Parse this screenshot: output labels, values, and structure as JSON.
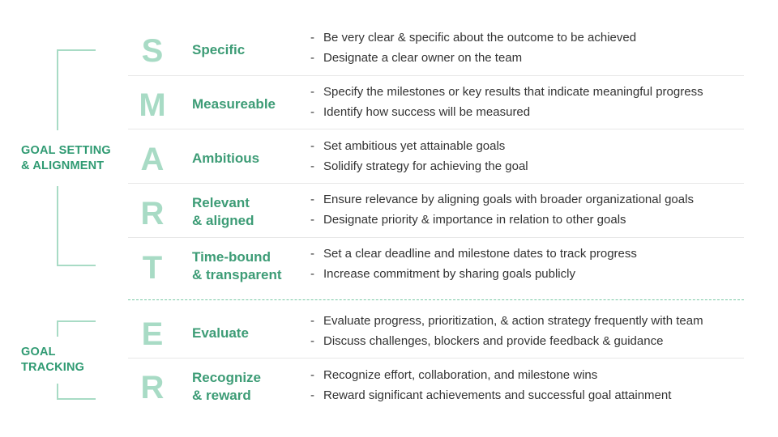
{
  "groups": [
    {
      "label_line1": "GOAL SETTING",
      "label_line2": "& ALIGNMENT"
    },
    {
      "label_line1": "GOAL",
      "label_line2": "TRACKING"
    }
  ],
  "rows": [
    {
      "letter": "S",
      "term_line1": "Specific",
      "term_line2": "",
      "bullets": [
        "Be very clear & specific about the outcome to be achieved",
        "Designate a clear owner on the team"
      ]
    },
    {
      "letter": "M",
      "term_line1": "Measureable",
      "term_line2": "",
      "bullets": [
        "Specify the milestones or key results that indicate meaningful progress",
        "Identify how success will be measured"
      ]
    },
    {
      "letter": "A",
      "term_line1": "Ambitious",
      "term_line2": "",
      "bullets": [
        "Set ambitious yet attainable goals",
        "Solidify strategy for achieving the goal"
      ]
    },
    {
      "letter": "R",
      "term_line1": "Relevant",
      "term_line2": "& aligned",
      "bullets": [
        "Ensure relevance by aligning goals with broader organizational goals",
        "Designate priority & importance in relation to other goals"
      ]
    },
    {
      "letter": "T",
      "term_line1": "Time-bound",
      "term_line2": "& transparent",
      "bullets": [
        "Set a clear deadline and milestone dates to track progress",
        "Increase commitment by sharing goals publicly"
      ]
    },
    {
      "letter": "E",
      "term_line1": "Evaluate",
      "term_line2": "",
      "bullets": [
        "Evaluate progress, prioritization, & action strategy frequently with team",
        "Discuss challenges, blockers and provide feedback & guidance"
      ]
    },
    {
      "letter": "R",
      "term_line1": "Recognize",
      "term_line2": "& reward",
      "bullets": [
        "Recognize effort, collaboration, and milestone wins",
        "Reward significant achievements and successful goal attainment"
      ]
    }
  ],
  "bullet_dash": "-",
  "colors": {
    "letter": "#a8dbc5",
    "term": "#3d9c76",
    "group_label": "#2f9a72",
    "divider_dashed": "#7ac9a6"
  }
}
